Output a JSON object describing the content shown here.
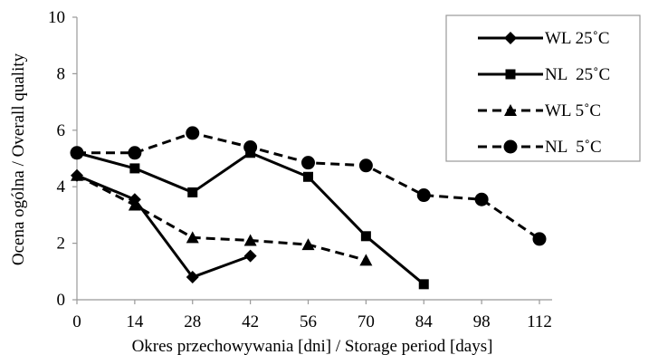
{
  "chart_data": {
    "type": "line",
    "title": "",
    "xlabel": "Okres przechowywania [dni] / Storage period [days]",
    "ylabel": "Ocena ogólna / Overall quality",
    "xlim": [
      0,
      112
    ],
    "ylim": [
      0,
      10
    ],
    "x_ticks": [
      0,
      14,
      28,
      42,
      56,
      70,
      84,
      98,
      112
    ],
    "y_ticks": [
      0,
      2,
      4,
      6,
      8,
      10
    ],
    "grid": false,
    "legend_position": "top-right",
    "series": [
      {
        "name": "WL 25˚C",
        "line": "solid",
        "marker": "diamond",
        "x": [
          0,
          14,
          28,
          42
        ],
        "y": [
          4.4,
          3.55,
          0.8,
          1.55
        ]
      },
      {
        "name": "NL  25˚C",
        "line": "solid",
        "marker": "square",
        "x": [
          0,
          14,
          28,
          42,
          56,
          70,
          84
        ],
        "y": [
          5.2,
          4.65,
          3.8,
          5.2,
          4.35,
          2.25,
          0.55
        ]
      },
      {
        "name": "WL 5˚C",
        "line": "dashed",
        "marker": "triangle",
        "x": [
          0,
          14,
          28,
          42,
          56,
          70
        ],
        "y": [
          4.4,
          3.35,
          2.2,
          2.1,
          1.95,
          1.4
        ]
      },
      {
        "name": "NL  5˚C",
        "line": "dashed",
        "marker": "circle",
        "x": [
          0,
          14,
          28,
          42,
          56,
          70,
          84,
          98,
          112
        ],
        "y": [
          5.2,
          5.2,
          5.9,
          5.4,
          4.85,
          4.75,
          3.7,
          3.55,
          2.15
        ]
      }
    ]
  }
}
